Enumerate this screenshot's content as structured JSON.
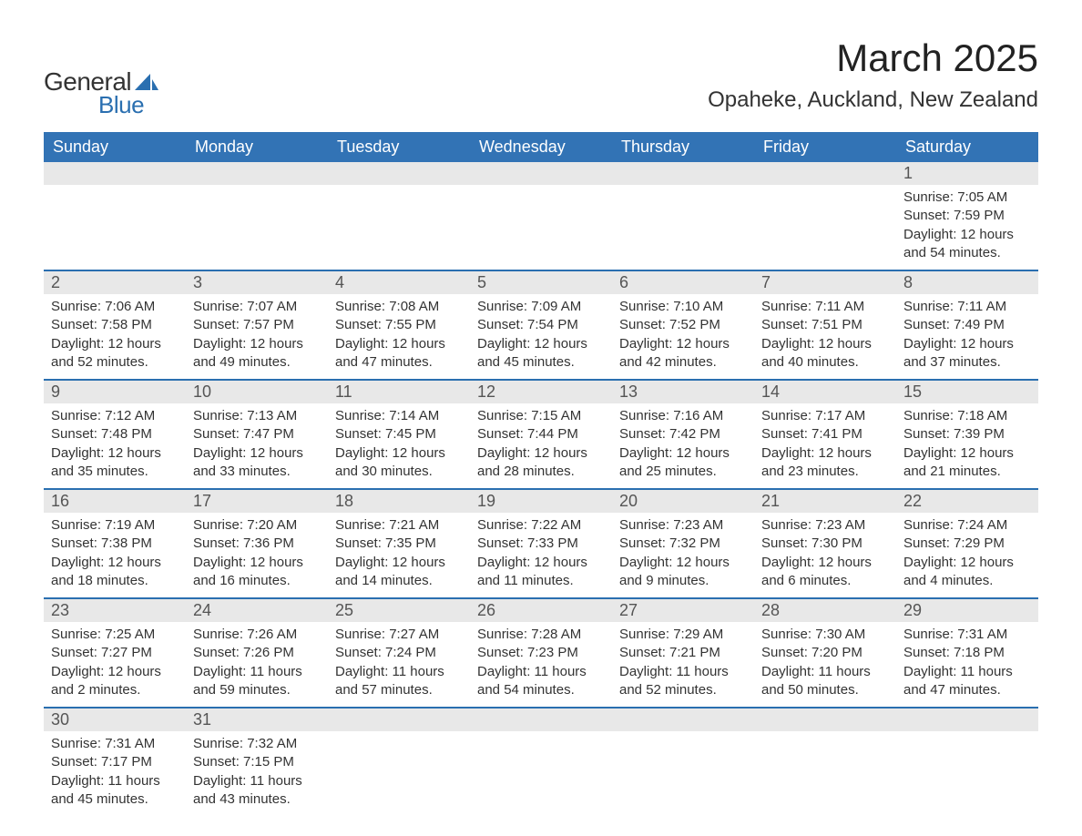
{
  "logo": {
    "text_general": "General",
    "text_blue": "Blue",
    "shape_color": "#2a6fb0"
  },
  "title": "March 2025",
  "location": "Opaheke, Auckland, New Zealand",
  "colors": {
    "header_bg": "#3273b5",
    "header_text": "#ffffff",
    "daynum_bg": "#e8e8e8",
    "border": "#2a6fb0",
    "body_text": "#333333",
    "page_bg": "#ffffff"
  },
  "weekdays": [
    "Sunday",
    "Monday",
    "Tuesday",
    "Wednesday",
    "Thursday",
    "Friday",
    "Saturday"
  ],
  "weeks": [
    [
      null,
      null,
      null,
      null,
      null,
      null,
      {
        "n": "1",
        "sr": "Sunrise: 7:05 AM",
        "ss": "Sunset: 7:59 PM",
        "d1": "Daylight: 12 hours",
        "d2": "and 54 minutes."
      }
    ],
    [
      {
        "n": "2",
        "sr": "Sunrise: 7:06 AM",
        "ss": "Sunset: 7:58 PM",
        "d1": "Daylight: 12 hours",
        "d2": "and 52 minutes."
      },
      {
        "n": "3",
        "sr": "Sunrise: 7:07 AM",
        "ss": "Sunset: 7:57 PM",
        "d1": "Daylight: 12 hours",
        "d2": "and 49 minutes."
      },
      {
        "n": "4",
        "sr": "Sunrise: 7:08 AM",
        "ss": "Sunset: 7:55 PM",
        "d1": "Daylight: 12 hours",
        "d2": "and 47 minutes."
      },
      {
        "n": "5",
        "sr": "Sunrise: 7:09 AM",
        "ss": "Sunset: 7:54 PM",
        "d1": "Daylight: 12 hours",
        "d2": "and 45 minutes."
      },
      {
        "n": "6",
        "sr": "Sunrise: 7:10 AM",
        "ss": "Sunset: 7:52 PM",
        "d1": "Daylight: 12 hours",
        "d2": "and 42 minutes."
      },
      {
        "n": "7",
        "sr": "Sunrise: 7:11 AM",
        "ss": "Sunset: 7:51 PM",
        "d1": "Daylight: 12 hours",
        "d2": "and 40 minutes."
      },
      {
        "n": "8",
        "sr": "Sunrise: 7:11 AM",
        "ss": "Sunset: 7:49 PM",
        "d1": "Daylight: 12 hours",
        "d2": "and 37 minutes."
      }
    ],
    [
      {
        "n": "9",
        "sr": "Sunrise: 7:12 AM",
        "ss": "Sunset: 7:48 PM",
        "d1": "Daylight: 12 hours",
        "d2": "and 35 minutes."
      },
      {
        "n": "10",
        "sr": "Sunrise: 7:13 AM",
        "ss": "Sunset: 7:47 PM",
        "d1": "Daylight: 12 hours",
        "d2": "and 33 minutes."
      },
      {
        "n": "11",
        "sr": "Sunrise: 7:14 AM",
        "ss": "Sunset: 7:45 PM",
        "d1": "Daylight: 12 hours",
        "d2": "and 30 minutes."
      },
      {
        "n": "12",
        "sr": "Sunrise: 7:15 AM",
        "ss": "Sunset: 7:44 PM",
        "d1": "Daylight: 12 hours",
        "d2": "and 28 minutes."
      },
      {
        "n": "13",
        "sr": "Sunrise: 7:16 AM",
        "ss": "Sunset: 7:42 PM",
        "d1": "Daylight: 12 hours",
        "d2": "and 25 minutes."
      },
      {
        "n": "14",
        "sr": "Sunrise: 7:17 AM",
        "ss": "Sunset: 7:41 PM",
        "d1": "Daylight: 12 hours",
        "d2": "and 23 minutes."
      },
      {
        "n": "15",
        "sr": "Sunrise: 7:18 AM",
        "ss": "Sunset: 7:39 PM",
        "d1": "Daylight: 12 hours",
        "d2": "and 21 minutes."
      }
    ],
    [
      {
        "n": "16",
        "sr": "Sunrise: 7:19 AM",
        "ss": "Sunset: 7:38 PM",
        "d1": "Daylight: 12 hours",
        "d2": "and 18 minutes."
      },
      {
        "n": "17",
        "sr": "Sunrise: 7:20 AM",
        "ss": "Sunset: 7:36 PM",
        "d1": "Daylight: 12 hours",
        "d2": "and 16 minutes."
      },
      {
        "n": "18",
        "sr": "Sunrise: 7:21 AM",
        "ss": "Sunset: 7:35 PM",
        "d1": "Daylight: 12 hours",
        "d2": "and 14 minutes."
      },
      {
        "n": "19",
        "sr": "Sunrise: 7:22 AM",
        "ss": "Sunset: 7:33 PM",
        "d1": "Daylight: 12 hours",
        "d2": "and 11 minutes."
      },
      {
        "n": "20",
        "sr": "Sunrise: 7:23 AM",
        "ss": "Sunset: 7:32 PM",
        "d1": "Daylight: 12 hours",
        "d2": "and 9 minutes."
      },
      {
        "n": "21",
        "sr": "Sunrise: 7:23 AM",
        "ss": "Sunset: 7:30 PM",
        "d1": "Daylight: 12 hours",
        "d2": "and 6 minutes."
      },
      {
        "n": "22",
        "sr": "Sunrise: 7:24 AM",
        "ss": "Sunset: 7:29 PM",
        "d1": "Daylight: 12 hours",
        "d2": "and 4 minutes."
      }
    ],
    [
      {
        "n": "23",
        "sr": "Sunrise: 7:25 AM",
        "ss": "Sunset: 7:27 PM",
        "d1": "Daylight: 12 hours",
        "d2": "and 2 minutes."
      },
      {
        "n": "24",
        "sr": "Sunrise: 7:26 AM",
        "ss": "Sunset: 7:26 PM",
        "d1": "Daylight: 11 hours",
        "d2": "and 59 minutes."
      },
      {
        "n": "25",
        "sr": "Sunrise: 7:27 AM",
        "ss": "Sunset: 7:24 PM",
        "d1": "Daylight: 11 hours",
        "d2": "and 57 minutes."
      },
      {
        "n": "26",
        "sr": "Sunrise: 7:28 AM",
        "ss": "Sunset: 7:23 PM",
        "d1": "Daylight: 11 hours",
        "d2": "and 54 minutes."
      },
      {
        "n": "27",
        "sr": "Sunrise: 7:29 AM",
        "ss": "Sunset: 7:21 PM",
        "d1": "Daylight: 11 hours",
        "d2": "and 52 minutes."
      },
      {
        "n": "28",
        "sr": "Sunrise: 7:30 AM",
        "ss": "Sunset: 7:20 PM",
        "d1": "Daylight: 11 hours",
        "d2": "and 50 minutes."
      },
      {
        "n": "29",
        "sr": "Sunrise: 7:31 AM",
        "ss": "Sunset: 7:18 PM",
        "d1": "Daylight: 11 hours",
        "d2": "and 47 minutes."
      }
    ],
    [
      {
        "n": "30",
        "sr": "Sunrise: 7:31 AM",
        "ss": "Sunset: 7:17 PM",
        "d1": "Daylight: 11 hours",
        "d2": "and 45 minutes."
      },
      {
        "n": "31",
        "sr": "Sunrise: 7:32 AM",
        "ss": "Sunset: 7:15 PM",
        "d1": "Daylight: 11 hours",
        "d2": "and 43 minutes."
      },
      null,
      null,
      null,
      null,
      null
    ]
  ]
}
